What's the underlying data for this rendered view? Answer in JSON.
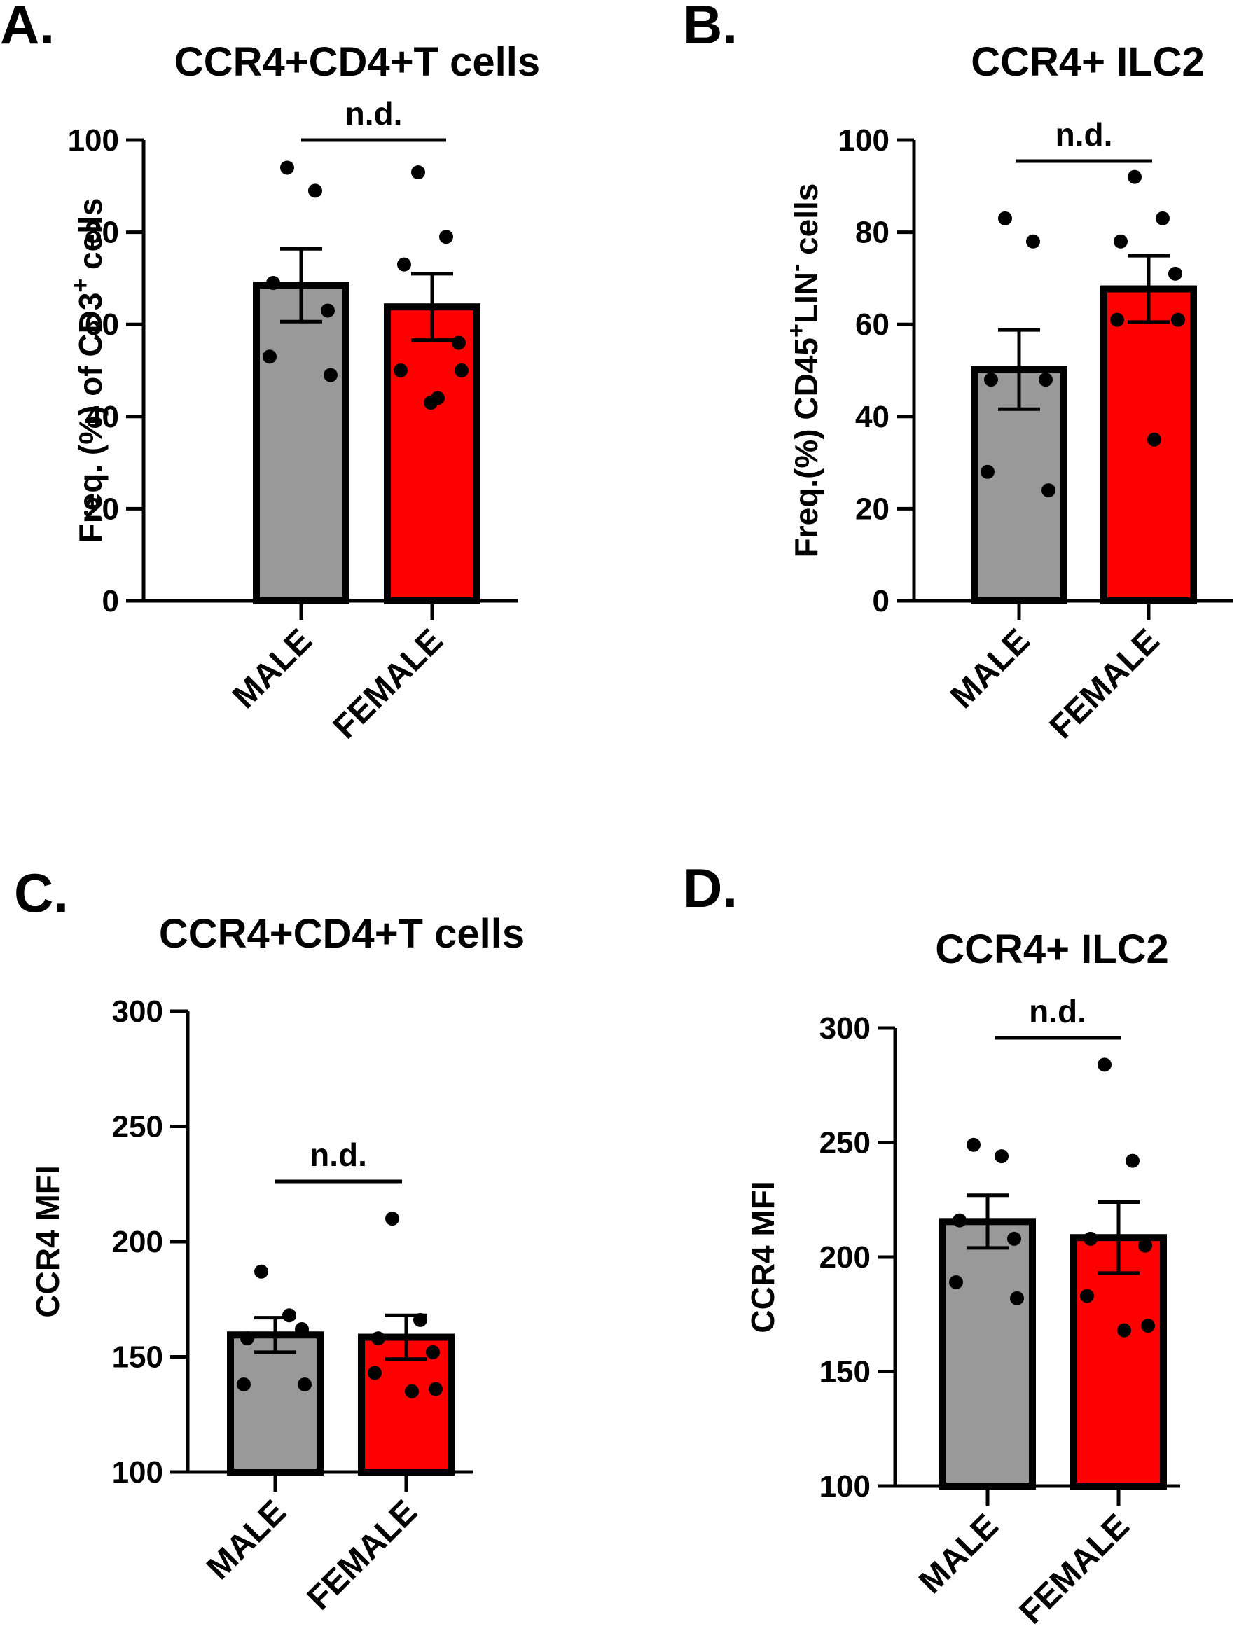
{
  "chart_data": [
    {
      "type": "bar",
      "panel_label": "A.",
      "title": "CCR4+CD4+T cells",
      "ylabel_parts": [
        {
          "text": "Freq. (%) of CD3",
          "sup": false
        },
        {
          "text": "+",
          "sup": true
        },
        {
          "text": " cells",
          "sup": false
        }
      ],
      "ylim": [
        0,
        100
      ],
      "yticks": [
        0,
        20,
        40,
        60,
        80,
        100
      ],
      "categories": [
        "MALE",
        "FEMALE"
      ],
      "series": [
        {
          "name": "MALE",
          "color": "#999999",
          "mean": 68.5,
          "sem": 7.9,
          "points": [
            94,
            89,
            69,
            63,
            53,
            49
          ]
        },
        {
          "name": "FEMALE",
          "color": "#ff0000",
          "mean": 63.8,
          "sem": 7.2,
          "points": [
            93,
            79,
            73,
            56,
            50,
            50,
            44,
            43
          ]
        }
      ],
      "annotation": "n.d."
    },
    {
      "type": "bar",
      "panel_label": "B.",
      "title": "CCR4+ ILC2",
      "ylabel_parts": [
        {
          "text": "Freq.(%) CD45",
          "sup": false
        },
        {
          "text": "+",
          "sup": true
        },
        {
          "text": "LIN",
          "sup": false
        },
        {
          "text": "-",
          "sup": true
        },
        {
          "text": " cells",
          "sup": false
        }
      ],
      "ylim": [
        0,
        100
      ],
      "yticks": [
        0,
        20,
        40,
        60,
        80,
        100
      ],
      "categories": [
        "MALE",
        "FEMALE"
      ],
      "series": [
        {
          "name": "MALE",
          "color": "#999999",
          "mean": 50.2,
          "sem": 8.6,
          "points": [
            83,
            78,
            48,
            48,
            28,
            24
          ]
        },
        {
          "name": "FEMALE",
          "color": "#ff0000",
          "mean": 67.7,
          "sem": 7.2,
          "points": [
            92,
            83,
            78,
            71,
            61,
            61,
            35
          ]
        }
      ],
      "annotation": "n.d."
    },
    {
      "type": "bar",
      "panel_label": "C.",
      "title": "CCR4+CD4+T cells",
      "ylabel_parts": [
        {
          "text": "CCR4 MFI",
          "sup": false
        }
      ],
      "ylim": [
        100,
        300
      ],
      "yticks": [
        100,
        150,
        200,
        250,
        300
      ],
      "categories": [
        "MALE",
        "FEMALE"
      ],
      "series": [
        {
          "name": "MALE",
          "color": "#999999",
          "mean": 159.5,
          "sem": 7.5,
          "points": [
            187,
            168,
            158,
            162,
            138,
            138
          ]
        },
        {
          "name": "FEMALE",
          "color": "#ff0000",
          "mean": 158.5,
          "sem": 9.5,
          "points": [
            210,
            166,
            158,
            152,
            143,
            136,
            135
          ]
        }
      ],
      "annotation": "n.d."
    },
    {
      "type": "bar",
      "panel_label": "D.",
      "title": "CCR4+ ILC2",
      "ylabel_parts": [
        {
          "text": "CCR4 MFI",
          "sup": false
        }
      ],
      "ylim": [
        100,
        300
      ],
      "yticks": [
        100,
        150,
        200,
        250,
        300
      ],
      "categories": [
        "MALE",
        "FEMALE"
      ],
      "series": [
        {
          "name": "MALE",
          "color": "#999999",
          "mean": 215.5,
          "sem": 11.5,
          "points": [
            249,
            244,
            216,
            208,
            189,
            182
          ]
        },
        {
          "name": "FEMALE",
          "color": "#ff0000",
          "mean": 208.5,
          "sem": 15.5,
          "points": [
            284,
            242,
            208,
            205,
            183,
            170,
            168
          ]
        }
      ],
      "annotation": "n.d."
    }
  ]
}
